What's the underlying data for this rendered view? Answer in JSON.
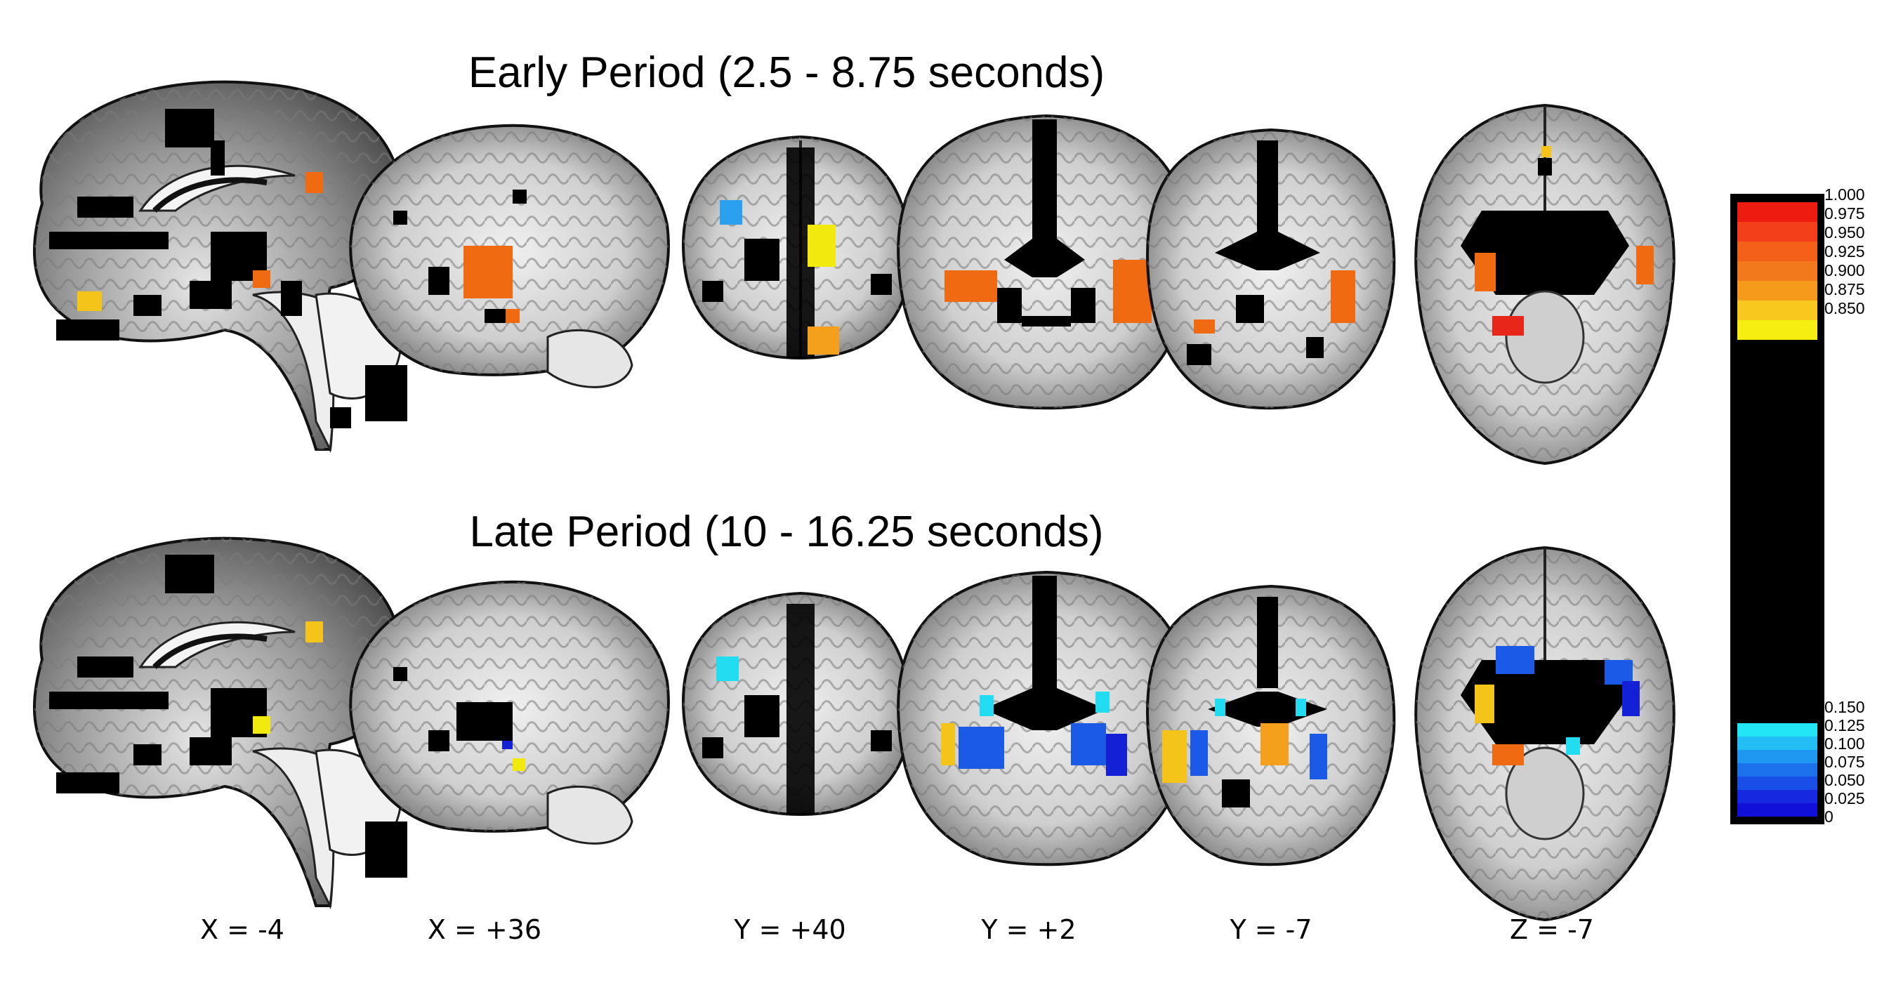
{
  "titles": {
    "early": "Early Period (2.5 - 8.75 seconds)",
    "late": "Late Period (10 - 16.25 seconds)"
  },
  "coordinates": [
    "X = -4",
    "X = +36",
    "Y = +40",
    "Y = +2",
    "Y = -7",
    "Z = -7"
  ],
  "colorbar": {
    "ticks_high": [
      "1.000",
      "0.975",
      "0.950",
      "0.925",
      "0.900",
      "0.875",
      "0.850"
    ],
    "ticks_low": [
      "0.150",
      "0.125",
      "0.100",
      "0.075",
      "0.050",
      "0.025",
      "0"
    ],
    "colors_high": [
      "#ee1c10",
      "#f4401a",
      "#f45f1a",
      "#f37a1c",
      "#f69a1c",
      "#f8c81e",
      "#f6ee10"
    ],
    "colors_mid": "#000000",
    "colors_low": [
      "#22e6f6",
      "#22bef4",
      "#1e98f0",
      "#1c72ec",
      "#1a4ee8",
      "#1628e0",
      "#1010d8"
    ]
  },
  "activation_colors": {
    "red": "#e8261a",
    "orange": "#f06a12",
    "amber": "#f4a01c",
    "gold": "#f4c41a",
    "yellow": "#f2ea0e",
    "cyan": "#22dcf2",
    "lightblue": "#2aa0ee",
    "blue": "#1a5ae6",
    "darkblue": "#1420d6"
  }
}
